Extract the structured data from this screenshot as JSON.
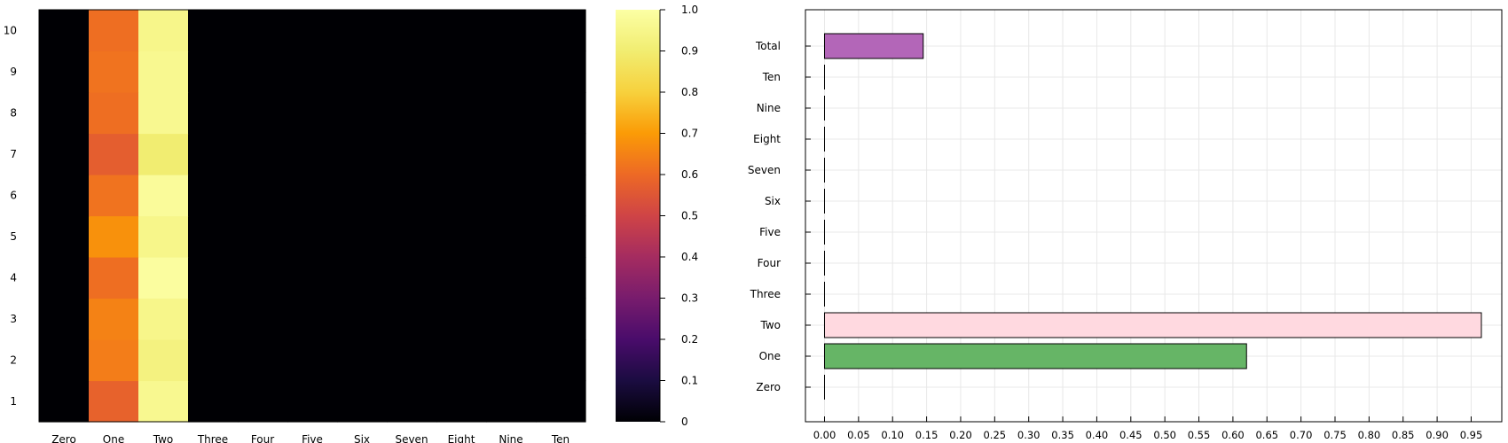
{
  "chart_data": [
    {
      "type": "heatmap",
      "x_categories": [
        "Zero",
        "One",
        "Two",
        "Three",
        "Four",
        "Five",
        "Six",
        "Seven",
        "Eight",
        "Nine",
        "Ten"
      ],
      "y_categories": [
        "1",
        "2",
        "3",
        "4",
        "5",
        "6",
        "7",
        "8",
        "9",
        "10"
      ],
      "values": [
        [
          0,
          0.58,
          0.96,
          0,
          0,
          0,
          0,
          0,
          0,
          0,
          0
        ],
        [
          0,
          0.64,
          0.93,
          0,
          0,
          0,
          0,
          0,
          0,
          0,
          0
        ],
        [
          0,
          0.65,
          0.95,
          0,
          0,
          0,
          0,
          0,
          0,
          0,
          0
        ],
        [
          0,
          0.61,
          0.99,
          0,
          0,
          0,
          0,
          0,
          0,
          0,
          0
        ],
        [
          0,
          0.68,
          0.95,
          0,
          0,
          0,
          0,
          0,
          0,
          0,
          0
        ],
        [
          0,
          0.62,
          0.98,
          0,
          0,
          0,
          0,
          0,
          0,
          0,
          0
        ],
        [
          0,
          0.57,
          0.9,
          0,
          0,
          0,
          0,
          0,
          0,
          0,
          0
        ],
        [
          0,
          0.61,
          0.96,
          0,
          0,
          0,
          0,
          0,
          0,
          0,
          0
        ],
        [
          0,
          0.62,
          0.96,
          0,
          0,
          0,
          0,
          0,
          0,
          0,
          0
        ],
        [
          0,
          0.61,
          0.95,
          0,
          0,
          0,
          0,
          0,
          0,
          0,
          0
        ]
      ],
      "colorbar": {
        "range": [
          0,
          1
        ],
        "ticks": [
          "0",
          "0.1",
          "0.2",
          "0.3",
          "0.4",
          "0.5",
          "0.6",
          "0.7",
          "0.8",
          "0.9",
          "1.0"
        ],
        "colormap": "inferno"
      },
      "title": "",
      "xlabel": "",
      "ylabel": "",
      "grid": false
    },
    {
      "type": "bar",
      "orientation": "horizontal",
      "categories": [
        "Zero",
        "One",
        "Two",
        "Three",
        "Four",
        "Five",
        "Six",
        "Seven",
        "Eight",
        "Nine",
        "Ten",
        "Total"
      ],
      "values": [
        0,
        0.62,
        0.965,
        0,
        0,
        0,
        0,
        0,
        0,
        0,
        0,
        0.145
      ],
      "colors": [
        "#000000",
        "#66b566",
        "#ffd9e0",
        "#000000",
        "#000000",
        "#000000",
        "#000000",
        "#000000",
        "#000000",
        "#000000",
        "#000000",
        "#b366b8"
      ],
      "xlim": [
        -0.028,
        0.995
      ],
      "xticks": [
        "0.00",
        "0.05",
        "0.10",
        "0.15",
        "0.20",
        "0.25",
        "0.30",
        "0.35",
        "0.40",
        "0.45",
        "0.50",
        "0.55",
        "0.60",
        "0.65",
        "0.70",
        "0.75",
        "0.80",
        "0.85",
        "0.90",
        "0.95"
      ],
      "title": "",
      "xlabel": "",
      "ylabel": "",
      "grid": true
    }
  ]
}
